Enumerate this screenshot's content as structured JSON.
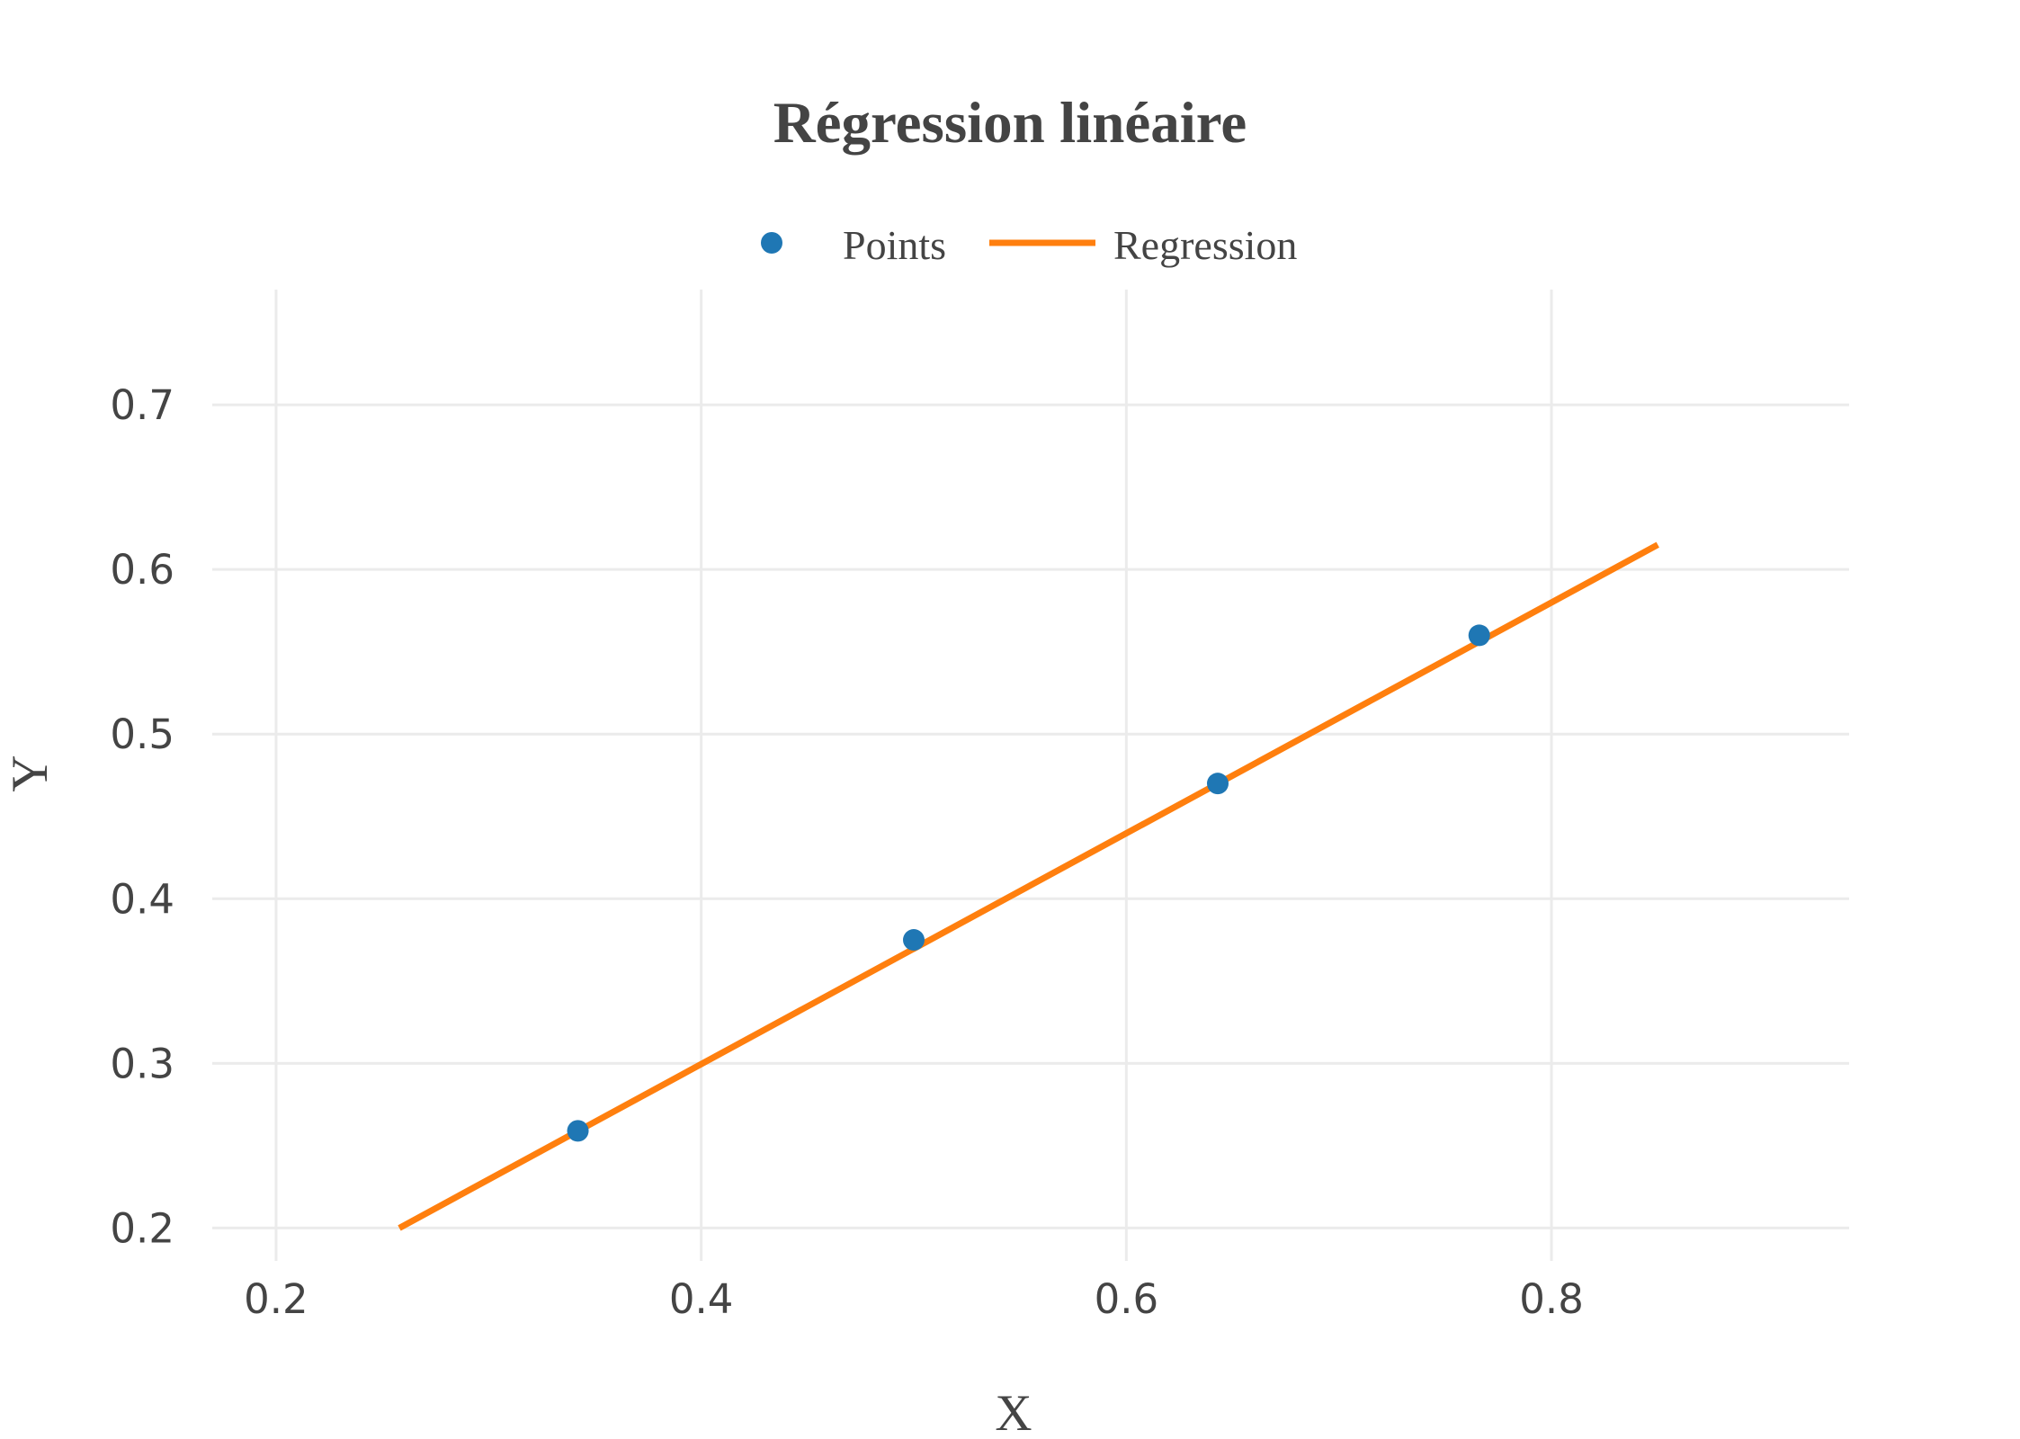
{
  "chart_data": {
    "type": "scatter",
    "title": "Régression linéaire",
    "xlabel": "X",
    "ylabel": "Y",
    "xlim": [
      0.17,
      0.94
    ],
    "ylim": [
      0.18,
      0.77
    ],
    "x_ticks": [
      0.2,
      0.4,
      0.6,
      0.8
    ],
    "y_ticks": [
      0.2,
      0.3,
      0.4,
      0.5,
      0.6,
      0.7
    ],
    "grid": true,
    "legend_position": "top-center",
    "series": [
      {
        "name": "Points",
        "mode": "markers",
        "color": "#1f77b4",
        "x": [
          0.342,
          0.5,
          0.643,
          0.766
        ],
        "y": [
          0.259,
          0.375,
          0.47,
          0.56
        ]
      },
      {
        "name": "Regression",
        "mode": "line",
        "color": "#ff7f0e",
        "x": [
          0.258,
          0.85
        ],
        "y": [
          0.2,
          0.615
        ]
      }
    ]
  }
}
